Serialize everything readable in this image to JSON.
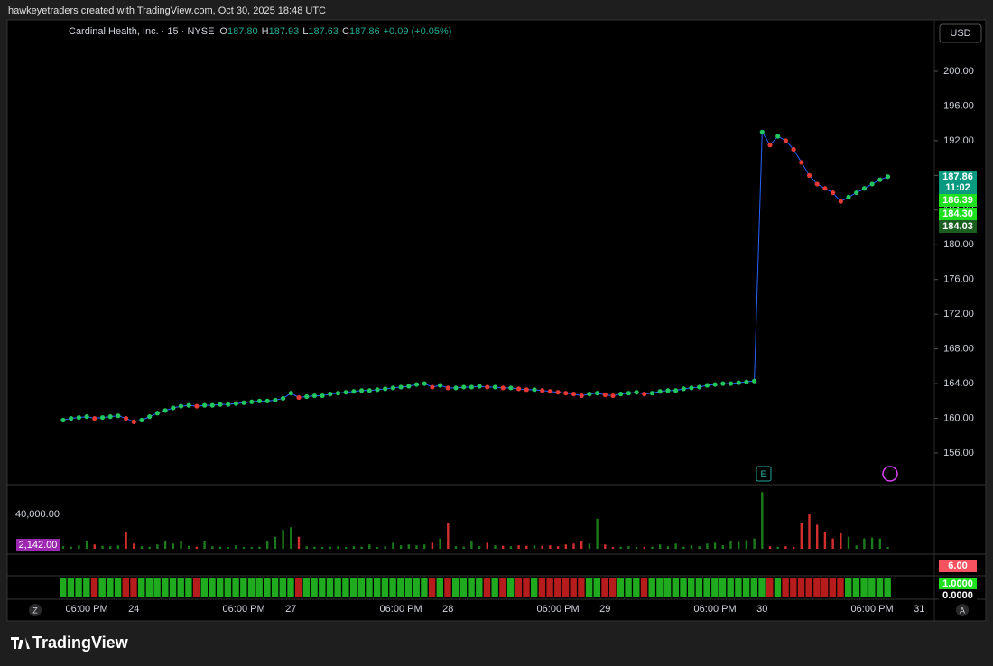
{
  "header": "hawkeyetraders created with TradingView.com, Oct 30, 2025 18:48 UTC",
  "currency": "USD",
  "legend": {
    "symbol": "Cardinal Health, Inc. · 15 · NYSE",
    "ohlc": [
      {
        "label": "O",
        "value": "187.80"
      },
      {
        "label": "H",
        "value": "187.93"
      },
      {
        "label": "L",
        "value": "187.63"
      },
      {
        "label": "C",
        "value": "187.86"
      }
    ],
    "change": "+0.09 (+0.05%)"
  },
  "price_tags": [
    {
      "text": "187.86",
      "color": "#089981"
    },
    {
      "text": "11:02",
      "color": "#089981"
    },
    {
      "text": "186.39",
      "color": "#1fe01f"
    },
    {
      "text": "184.30",
      "color": "#1fe01f"
    },
    {
      "text": "184.03",
      "color": "#1b5e20"
    },
    {
      "text": "6.00",
      "color": "#f7525f"
    },
    {
      "text": "1.0000",
      "color": "#1fe01f"
    },
    {
      "text": "0.0000",
      "color": "#000000"
    }
  ],
  "buttons": {
    "left": "Z",
    "right": "A",
    "earnings": "E"
  },
  "brand": "TradingView",
  "chart_data": [
    {
      "type": "line",
      "color": "#22c55e",
      "down_color": "#e53935",
      "categories": [
        null,
        null,
        null,
        "06:00 PM",
        null,
        null,
        null,
        null,
        null,
        "24",
        null,
        null,
        null,
        null,
        null,
        null,
        null,
        null,
        null,
        null,
        null,
        null,
        null,
        "06:00 PM",
        null,
        null,
        null,
        null,
        null,
        "27",
        null,
        null,
        null,
        null,
        null,
        null,
        null,
        null,
        null,
        null,
        null,
        null,
        null,
        "06:00 PM",
        null,
        null,
        null,
        null,
        null,
        "28",
        null,
        null,
        null,
        null,
        null,
        null,
        null,
        null,
        null,
        null,
        null,
        null,
        null,
        "06:00 PM",
        null,
        null,
        null,
        null,
        null,
        "29",
        null,
        null,
        null,
        null,
        null,
        null,
        null,
        null,
        null,
        null,
        null,
        null,
        null,
        "06:00 PM",
        null,
        null,
        null,
        null,
        null,
        "30",
        null,
        null,
        null,
        null,
        null,
        null,
        null,
        null,
        null,
        null,
        null,
        null,
        null,
        "06:00 PM",
        null,
        null,
        null,
        null,
        null,
        "31"
      ],
      "values": [
        159.8,
        160.0,
        160.1,
        160.2,
        160.0,
        160.1,
        160.2,
        160.3,
        160.0,
        159.6,
        159.8,
        160.2,
        160.6,
        160.9,
        161.2,
        161.4,
        161.5,
        161.4,
        161.5,
        161.5,
        161.6,
        161.6,
        161.7,
        161.8,
        161.9,
        162.0,
        162.0,
        162.1,
        162.3,
        162.9,
        162.4,
        162.5,
        162.6,
        162.6,
        162.8,
        162.9,
        163.0,
        163.1,
        163.2,
        163.2,
        163.3,
        163.4,
        163.5,
        163.6,
        163.7,
        163.9,
        164.0,
        163.6,
        163.8,
        163.5,
        163.5,
        163.6,
        163.6,
        163.7,
        163.6,
        163.6,
        163.5,
        163.5,
        163.4,
        163.3,
        163.3,
        163.2,
        163.1,
        163.0,
        162.9,
        162.8,
        162.6,
        162.8,
        162.9,
        162.7,
        162.6,
        162.8,
        162.9,
        163.0,
        162.8,
        162.9,
        163.1,
        163.2,
        163.2,
        163.4,
        163.5,
        163.6,
        163.8,
        163.9,
        164.0,
        164.0,
        164.1,
        164.2,
        164.3,
        193.0,
        191.5,
        192.5,
        192.0,
        191.0,
        189.5,
        188.0,
        187.0,
        186.5,
        186.0,
        185.0,
        185.5,
        186.0,
        186.5,
        187.0,
        187.5,
        187.86,
        null,
        null,
        null,
        null
      ],
      "ylim": [
        152.36,
        205.72
      ],
      "yticks": [
        {
          "value": 200,
          "label": "200.00"
        },
        {
          "value": 196,
          "label": "196.00"
        },
        {
          "value": 192,
          "label": "192.00"
        },
        {
          "value": 188,
          "label": "188.00"
        },
        {
          "value": 184,
          "label": "184.00"
        },
        {
          "value": 180,
          "label": "180.00"
        },
        {
          "value": 176,
          "label": "176.00"
        },
        {
          "value": 172,
          "label": "172.00"
        },
        {
          "value": 168,
          "label": "168.00"
        },
        {
          "value": 164,
          "label": "164.00"
        },
        {
          "value": 160,
          "label": "160.00"
        },
        {
          "value": 156,
          "label": "156.00"
        }
      ]
    },
    {
      "type": "bar",
      "color": "#1b7a1b",
      "down_color": "#d32f2f",
      "current_label": "2,142.00",
      "values": [
        3000,
        2500,
        4000,
        9000,
        5000,
        3500,
        3000,
        4000,
        20000,
        6000,
        3000,
        2500,
        5000,
        9000,
        6000,
        9000,
        3500,
        2500,
        9000,
        3000,
        2500,
        2000,
        4000,
        2000,
        2000,
        2500,
        9000,
        14000,
        22000,
        25000,
        14000,
        3000,
        2500,
        2000,
        2500,
        3000,
        2000,
        3000,
        2500,
        5000,
        2000,
        3000,
        7000,
        4000,
        5000,
        4000,
        5000,
        7000,
        12000,
        30000,
        3000,
        2500,
        9000,
        3000,
        7000,
        4000,
        3500,
        3000,
        4000,
        3500,
        4000,
        3500,
        4000,
        3000,
        5000,
        6000,
        9000,
        6000,
        35000,
        5000,
        2000,
        2500,
        3000,
        2000,
        2000,
        2500,
        5000,
        3000,
        6000,
        2500,
        4000,
        3000,
        6000,
        7000,
        4000,
        9000,
        8000,
        10000,
        12000,
        66000,
        3000,
        2500,
        3000,
        2000,
        30000,
        40000,
        28000,
        20000,
        12000,
        18000,
        14000,
        4000,
        12000,
        13000,
        12000,
        2142,
        null,
        null,
        null,
        null
      ],
      "ylim": [
        0,
        73700
      ],
      "yticks": [
        {
          "value": 40000,
          "label": "40,000.00"
        }
      ]
    }
  ]
}
